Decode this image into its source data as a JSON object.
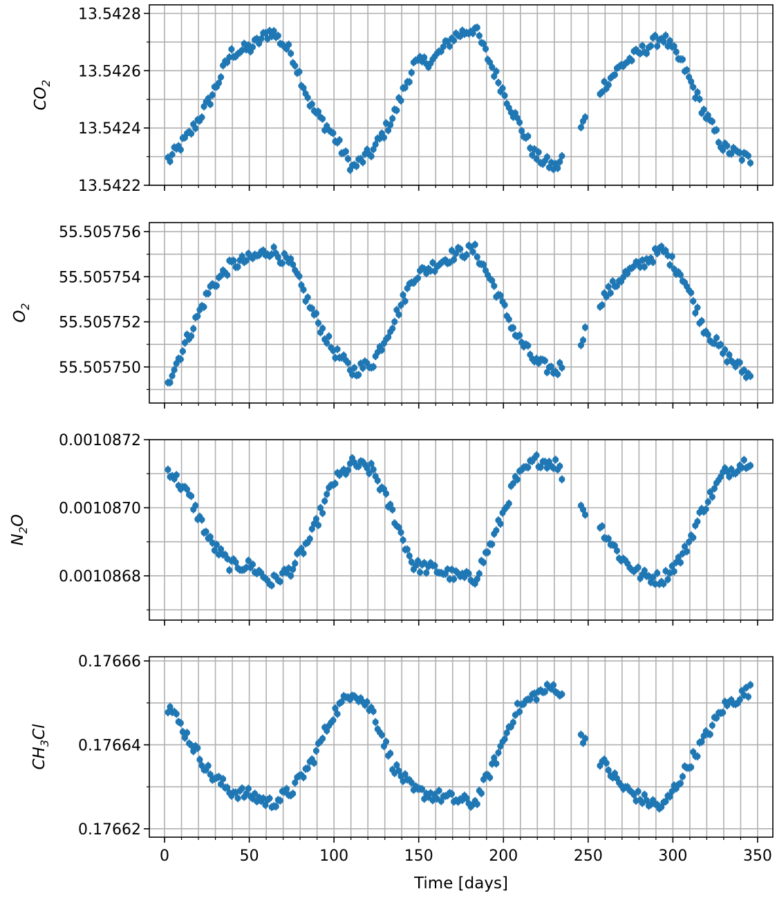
{
  "chart_data": [
    {
      "type": "scatter",
      "ylabel": "CO_2",
      "ylabel_main": "CO",
      "ylabel_sub": "2",
      "ylim": [
        13.5422,
        13.54283
      ],
      "yticks": [
        13.5422,
        13.5424,
        13.5426,
        13.5428
      ],
      "ytick_labels": [
        "13.5422",
        "13.5424",
        "13.5426",
        "13.5428"
      ],
      "grid": true,
      "color": "#1f77b4",
      "period_days": 115,
      "x": [
        3,
        15,
        27,
        39,
        51,
        63,
        75,
        87,
        99,
        111,
        123,
        135,
        147,
        159,
        171,
        183,
        195,
        207,
        219,
        231,
        243,
        258,
        270,
        282,
        294,
        306,
        318,
        330,
        345
      ],
      "y": [
        13.54229,
        13.54238,
        13.5425,
        13.54266,
        13.54268,
        13.54274,
        13.54266,
        13.54247,
        13.54238,
        13.54226,
        13.54232,
        13.54244,
        13.54262,
        13.54264,
        13.54272,
        13.54275,
        13.54259,
        13.54244,
        13.5423,
        13.54226,
        13.54237,
        13.54254,
        13.54262,
        13.54267,
        13.54272,
        13.54262,
        13.54246,
        13.54233,
        13.54229
      ]
    },
    {
      "type": "scatter",
      "ylabel": "O_2",
      "ylabel_main": "O",
      "ylabel_sub": "2",
      "ylim": [
        55.5057484,
        55.5057564
      ],
      "yticks": [
        55.50575,
        55.505752,
        55.505754,
        55.505756
      ],
      "ytick_labels": [
        "55.505750",
        "55.505752",
        "55.505754",
        "55.505756"
      ],
      "grid": true,
      "color": "#1f77b4",
      "period_days": 115,
      "x": [
        3,
        15,
        27,
        39,
        51,
        63,
        75,
        87,
        99,
        111,
        123,
        135,
        147,
        159,
        171,
        183,
        195,
        207,
        219,
        231,
        243,
        258,
        270,
        282,
        294,
        306,
        318,
        330,
        345
      ],
      "y": [
        55.5057495,
        55.5057515,
        55.5057535,
        55.5057545,
        55.5057548,
        55.5057552,
        55.5057545,
        55.5057525,
        55.5057508,
        55.5057498,
        55.5057502,
        55.505752,
        55.505754,
        55.5057545,
        55.505755,
        55.5057552,
        55.5057535,
        55.5057515,
        55.5057502,
        55.5057498,
        55.5057508,
        55.505753,
        55.505754,
        55.5057546,
        55.5057552,
        55.505754,
        55.5057518,
        55.5057506,
        55.5057496
      ]
    },
    {
      "type": "scatter",
      "ylabel": "N_2O",
      "ylabel_main": "N",
      "ylabel_sub": "2",
      "ylabel_tail": "O",
      "ylim": [
        0.00108667,
        0.0010872
      ],
      "yticks": [
        0.0010868,
        0.001087,
        0.0010872
      ],
      "ytick_labels": [
        "0.0010868",
        "0.0010870",
        "0.0010872"
      ],
      "grid": true,
      "color": "#1f77b4",
      "period_days": 115,
      "x": [
        3,
        15,
        27,
        39,
        51,
        63,
        75,
        87,
        99,
        111,
        123,
        135,
        147,
        159,
        171,
        183,
        195,
        207,
        219,
        231,
        243,
        258,
        270,
        282,
        294,
        306,
        318,
        330,
        345
      ],
      "y": [
        0.00108711,
        0.00108703,
        0.0010869,
        0.00108683,
        0.00108683,
        0.00108678,
        0.00108682,
        0.00108692,
        0.00108707,
        0.00108713,
        0.00108711,
        0.00108698,
        0.00108683,
        0.00108682,
        0.0010868,
        0.00108679,
        0.00108692,
        0.00108708,
        0.00108714,
        0.00108713,
        0.00108702,
        0.00108694,
        0.00108685,
        0.0010868,
        0.00108679,
        0.00108686,
        0.001087,
        0.0010871,
        0.00108714
      ]
    },
    {
      "type": "scatter",
      "ylabel": "CH_3Cl",
      "ylabel_main": "CH",
      "ylabel_sub": "3",
      "ylabel_tail": "Cl",
      "ylim": [
        0.176618,
        0.176661
      ],
      "yticks": [
        0.17662,
        0.17664,
        0.17666
      ],
      "ytick_labels": [
        "0.17662",
        "0.17664",
        "0.17666"
      ],
      "grid": true,
      "color": "#1f77b4",
      "period_days": 115,
      "x": [
        3,
        15,
        27,
        39,
        51,
        63,
        75,
        87,
        99,
        111,
        123,
        135,
        147,
        159,
        171,
        183,
        195,
        207,
        219,
        231,
        243,
        258,
        270,
        282,
        294,
        306,
        318,
        330,
        345
      ],
      "y": [
        0.176649,
        0.176641,
        0.176633,
        0.176629,
        0.176628,
        0.176626,
        0.176629,
        0.176636,
        0.176647,
        0.176653,
        0.176648,
        0.176635,
        0.176629,
        0.176628,
        0.176627,
        0.176626,
        0.176636,
        0.176648,
        0.176652,
        0.176654,
        0.176644,
        0.176636,
        0.17663,
        0.176627,
        0.176625,
        0.176633,
        0.176641,
        0.176649,
        0.176653
      ]
    }
  ],
  "x_axis": {
    "label": "Time [days]",
    "xlim": [
      -9,
      359
    ],
    "ticks": [
      0,
      50,
      100,
      150,
      200,
      250,
      300,
      350
    ],
    "tick_labels": [
      "0",
      "50",
      "100",
      "150",
      "200",
      "250",
      "300",
      "350"
    ]
  }
}
